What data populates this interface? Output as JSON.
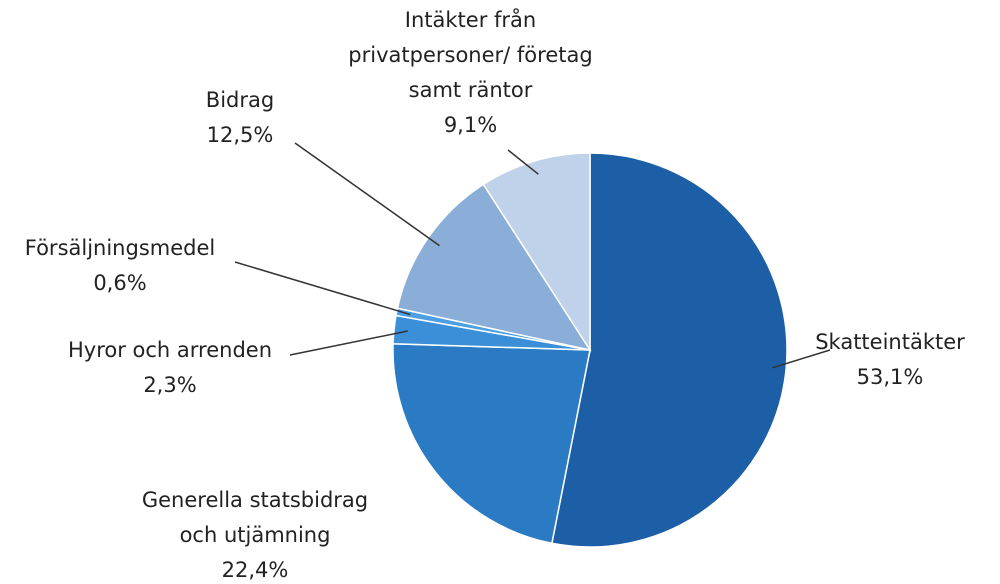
{
  "chart_data": {
    "type": "pie",
    "categories": [
      "Skatteintäkter",
      "Generella statsbidrag och utjämning",
      "Hyror och arrenden",
      "Försäljningsmedel",
      "Bidrag",
      "Intäkter från privatpersoner/ företag samt räntor"
    ],
    "values": [
      53.1,
      22.4,
      2.3,
      0.6,
      12.5,
      9.1
    ],
    "value_labels": [
      "53,1%",
      "22,4%",
      "2,3%",
      "0,6%",
      "12,5%",
      "9,1%"
    ],
    "colors": [
      "#1d5fa6",
      "#2b7bc4",
      "#3a8fd8",
      "#4c9fe2",
      "#8aaed8",
      "#bfd2ea"
    ]
  }
}
